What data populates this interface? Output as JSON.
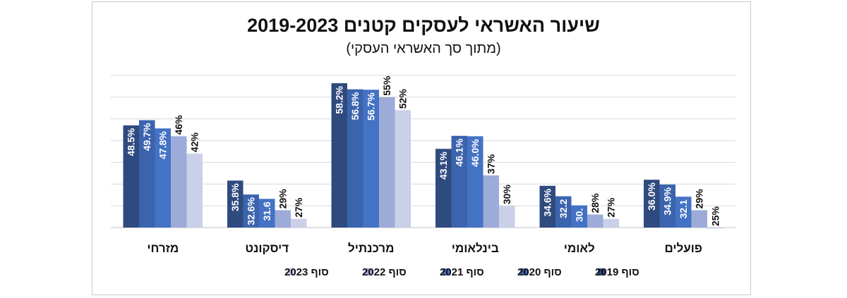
{
  "chart_data": {
    "type": "bar",
    "title": "שיעור האשראי לעסקים קטנים 2019-2023",
    "subtitle": "(מתוך סך האשראי העסקי)",
    "categories": [
      "מזרחי",
      "דיסקונט",
      "מרכנתיל",
      "בינלאומי",
      "לאומי",
      "פועלים"
    ],
    "series": [
      {
        "name": "סוף 2019",
        "color": "#2f4a7f",
        "values": [
          48.5,
          35.8,
          58.2,
          43.1,
          34.6,
          36.0
        ],
        "labels": [
          "48.5%",
          "35.8%",
          "58.2%",
          "43.1%",
          "34.6%",
          "36.0%"
        ]
      },
      {
        "name": "סוף 2020",
        "color": "#3b64ad",
        "values": [
          49.7,
          32.6,
          56.8,
          46.1,
          32.2,
          34.9
        ],
        "labels": [
          "49.7%",
          "32.6%",
          "56.8%",
          "46.1%",
          "32.2",
          "34.9%"
        ]
      },
      {
        "name": "סוף 2021",
        "color": "#4472c4",
        "values": [
          47.8,
          31.6,
          56.7,
          46.0,
          30.1,
          32.1
        ],
        "labels": [
          "47.8%",
          "31.6",
          "56.7%",
          "46.0%",
          "30.",
          "32.1"
        ]
      },
      {
        "name": "סוף 2022",
        "color": "#9dabd8",
        "values": [
          46,
          29,
          55,
          37,
          28,
          29
        ],
        "labels": [
          "46%",
          "29%",
          "55%",
          "37%",
          "28%",
          "29%"
        ]
      },
      {
        "name": "סוף 2023",
        "color": "#c9d0e8",
        "values": [
          42,
          27,
          52,
          30,
          27,
          25
        ],
        "labels": [
          "42%",
          "27%",
          "52%",
          "30%",
          "27%",
          "25%"
        ]
      }
    ],
    "ylim": [
      25,
      60
    ],
    "grid": true,
    "legend": "bottom"
  }
}
